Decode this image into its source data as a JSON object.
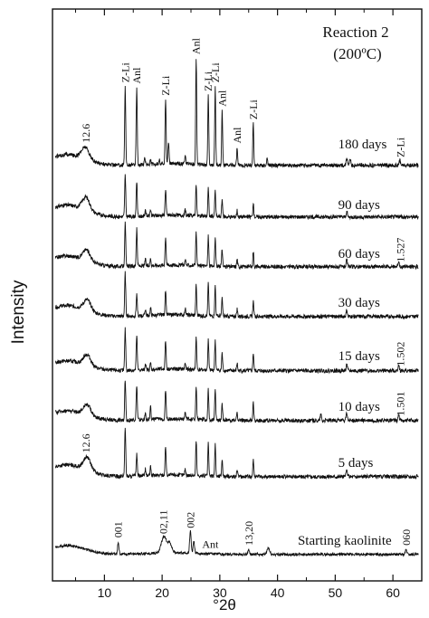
{
  "chart_data": {
    "type": "line",
    "title": "Reaction 2",
    "subtitle": "(200ºC)",
    "xlabel": "°2θ",
    "ylabel": "Intensity",
    "xlim": [
      1,
      65
    ],
    "x_ticks": [
      10,
      20,
      30,
      40,
      50,
      60
    ],
    "grid": false,
    "series": [
      {
        "name": "180 days",
        "label_x": 50.5,
        "baseline_rel": 0.22,
        "hump": 0.55,
        "noise": 0.18,
        "peaks": [
          [
            6.7,
            0.55,
            0.9
          ],
          [
            13.6,
            3.6,
            0.13
          ],
          [
            15.6,
            3.55,
            0.13
          ],
          [
            17.0,
            0.3,
            0.12
          ],
          [
            18.0,
            0.25,
            0.12
          ],
          [
            19.5,
            0.2,
            0.12
          ],
          [
            20.6,
            3.0,
            0.13
          ],
          [
            21.1,
            1.0,
            0.13
          ],
          [
            24.0,
            0.35,
            0.12
          ],
          [
            25.9,
            4.9,
            0.12
          ],
          [
            28.0,
            3.2,
            0.12
          ],
          [
            29.2,
            3.6,
            0.12
          ],
          [
            30.4,
            2.5,
            0.12
          ],
          [
            33.0,
            0.8,
            0.12
          ],
          [
            35.8,
            1.9,
            0.12
          ],
          [
            38.2,
            0.3,
            0.12
          ],
          [
            52.0,
            0.35,
            0.15
          ],
          [
            52.6,
            0.3,
            0.15
          ],
          [
            61.2,
            0.25,
            0.15
          ]
        ]
      },
      {
        "name": "90 days",
        "label_x": 50.5,
        "baseline_rel": 0.22,
        "hump": 0.6,
        "noise": 0.18,
        "peaks": [
          [
            6.8,
            0.6,
            0.9
          ],
          [
            13.6,
            1.9,
            0.13
          ],
          [
            15.6,
            1.6,
            0.13
          ],
          [
            17.1,
            0.3,
            0.12
          ],
          [
            18.0,
            0.3,
            0.12
          ],
          [
            20.6,
            1.2,
            0.13
          ],
          [
            24.0,
            0.25,
            0.12
          ],
          [
            25.9,
            1.5,
            0.12
          ],
          [
            28.0,
            1.3,
            0.12
          ],
          [
            29.2,
            1.2,
            0.12
          ],
          [
            30.4,
            0.8,
            0.12
          ],
          [
            33.0,
            0.3,
            0.12
          ],
          [
            35.8,
            0.6,
            0.12
          ],
          [
            52.0,
            0.25,
            0.15
          ]
        ]
      },
      {
        "name": "60 days",
        "label_x": 50.5,
        "baseline_rel": 0.22,
        "hump": 0.55,
        "noise": 0.18,
        "peaks": [
          [
            6.9,
            0.5,
            0.9
          ],
          [
            13.6,
            2.0,
            0.13
          ],
          [
            15.6,
            1.7,
            0.13
          ],
          [
            17.1,
            0.3,
            0.12
          ],
          [
            18.0,
            0.35,
            0.12
          ],
          [
            20.6,
            1.3,
            0.13
          ],
          [
            24.0,
            0.3,
            0.12
          ],
          [
            25.9,
            1.5,
            0.12
          ],
          [
            28.0,
            1.4,
            0.12
          ],
          [
            29.2,
            1.3,
            0.12
          ],
          [
            30.4,
            0.8,
            0.12
          ],
          [
            33.0,
            0.35,
            0.12
          ],
          [
            35.8,
            0.7,
            0.12
          ],
          [
            52.0,
            0.3,
            0.15
          ],
          [
            61.0,
            0.25,
            0.15
          ]
        ]
      },
      {
        "name": "30 days",
        "label_x": 50.5,
        "baseline_rel": 0.22,
        "hump": 0.55,
        "noise": 0.18,
        "peaks": [
          [
            7.0,
            0.5,
            0.9
          ],
          [
            13.6,
            2.0,
            0.13
          ],
          [
            15.6,
            1.0,
            0.13
          ],
          [
            17.1,
            0.3,
            0.12
          ],
          [
            18.0,
            0.35,
            0.12
          ],
          [
            20.6,
            1.1,
            0.13
          ],
          [
            24.0,
            0.3,
            0.12
          ],
          [
            25.9,
            1.4,
            0.12
          ],
          [
            28.0,
            1.5,
            0.12
          ],
          [
            29.2,
            1.4,
            0.12
          ],
          [
            30.4,
            0.8,
            0.12
          ],
          [
            33.0,
            0.35,
            0.12
          ],
          [
            35.8,
            0.7,
            0.12
          ],
          [
            52.0,
            0.3,
            0.15
          ]
        ]
      },
      {
        "name": "15 days",
        "label_x": 50.5,
        "baseline_rel": 0.22,
        "hump": 0.5,
        "noise": 0.18,
        "peaks": [
          [
            7.0,
            0.5,
            0.9
          ],
          [
            13.6,
            1.9,
            0.13
          ],
          [
            15.6,
            1.6,
            0.13
          ],
          [
            17.1,
            0.3,
            0.12
          ],
          [
            18.0,
            0.3,
            0.12
          ],
          [
            20.6,
            1.3,
            0.13
          ],
          [
            24.0,
            0.3,
            0.12
          ],
          [
            25.9,
            1.5,
            0.12
          ],
          [
            28.0,
            1.4,
            0.12
          ],
          [
            29.2,
            1.4,
            0.12
          ],
          [
            30.4,
            0.8,
            0.12
          ],
          [
            33.0,
            0.35,
            0.12
          ],
          [
            35.8,
            0.8,
            0.12
          ],
          [
            52.0,
            0.3,
            0.15
          ],
          [
            61.0,
            0.3,
            0.15
          ]
        ]
      },
      {
        "name": "10 days",
        "label_x": 50.5,
        "baseline_rel": 0.22,
        "hump": 0.5,
        "noise": 0.18,
        "peaks": [
          [
            7.0,
            0.5,
            0.9
          ],
          [
            13.6,
            1.9,
            0.13
          ],
          [
            15.6,
            1.6,
            0.13
          ],
          [
            17.1,
            0.3,
            0.12
          ],
          [
            18.0,
            0.6,
            0.12
          ],
          [
            20.6,
            1.3,
            0.13
          ],
          [
            24.0,
            0.3,
            0.12
          ],
          [
            25.9,
            1.5,
            0.12
          ],
          [
            28.0,
            1.4,
            0.12
          ],
          [
            29.2,
            1.4,
            0.12
          ],
          [
            30.4,
            0.8,
            0.12
          ],
          [
            33.0,
            0.35,
            0.12
          ],
          [
            35.8,
            0.8,
            0.12
          ],
          [
            47.5,
            0.3,
            0.15
          ],
          [
            52.0,
            0.35,
            0.15
          ],
          [
            61.0,
            0.3,
            0.15
          ]
        ]
      },
      {
        "name": "5 days",
        "label_x": 50.5,
        "baseline_rel": 0.22,
        "hump": 0.6,
        "noise": 0.18,
        "peaks": [
          [
            7.0,
            0.6,
            0.9
          ],
          [
            13.6,
            2.3,
            0.13
          ],
          [
            15.6,
            1.0,
            0.13
          ],
          [
            17.1,
            0.3,
            0.12
          ],
          [
            18.0,
            0.4,
            0.12
          ],
          [
            20.6,
            1.3,
            0.13
          ],
          [
            24.0,
            0.3,
            0.12
          ],
          [
            25.9,
            1.6,
            0.12
          ],
          [
            28.0,
            1.5,
            0.12
          ],
          [
            29.2,
            1.5,
            0.12
          ],
          [
            30.4,
            0.8,
            0.12
          ],
          [
            33.0,
            0.35,
            0.12
          ],
          [
            35.8,
            0.8,
            0.12
          ],
          [
            52.0,
            0.3,
            0.15
          ]
        ]
      },
      {
        "name": "Starting kaolinite",
        "label_x": 43.5,
        "baseline_rel": 0.22,
        "hump": 0.45,
        "noise": 0.12,
        "peaks": [
          [
            12.4,
            0.55,
            0.15
          ],
          [
            20.3,
            0.75,
            0.6
          ],
          [
            21.3,
            0.45,
            0.5
          ],
          [
            24.9,
            1.0,
            0.18
          ],
          [
            25.5,
            0.55,
            0.18
          ],
          [
            35.0,
            0.2,
            0.2
          ],
          [
            38.4,
            0.3,
            0.3
          ],
          [
            62.3,
            0.2,
            0.2
          ]
        ]
      }
    ],
    "annotations": [
      {
        "text": "12.6",
        "series": "180 days",
        "x": 6.8,
        "rotated": true
      },
      {
        "text": "Z-Li",
        "series": "180 days",
        "x": 13.6,
        "rotated": true
      },
      {
        "text": "Anl",
        "series": "180 days",
        "x": 15.6,
        "rotated": true
      },
      {
        "text": "Z-Li",
        "series": "180 days",
        "x": 20.6,
        "rotated": true
      },
      {
        "text": "Anl",
        "series": "180 days",
        "x": 25.9,
        "rotated": true
      },
      {
        "text": "Z-Li",
        "series": "180 days",
        "x": 28.0,
        "rotated": true
      },
      {
        "text": "Z-Li",
        "series": "180 days",
        "x": 29.2,
        "rotated": true
      },
      {
        "text": "Anl",
        "series": "180 days",
        "x": 30.4,
        "rotated": true
      },
      {
        "text": "Anl",
        "series": "180 days",
        "x": 33.0,
        "rotated": true
      },
      {
        "text": "Z-Li",
        "series": "180 days",
        "x": 35.8,
        "rotated": true
      },
      {
        "text": "Z-Li",
        "series": "180 days",
        "x": 61.3,
        "rotated": true
      },
      {
        "text": "1.527",
        "series": "60 days",
        "x": 61.3,
        "rotated": true
      },
      {
        "text": "1.502",
        "series": "15 days",
        "x": 61.3,
        "rotated": true
      },
      {
        "text": "1.501",
        "series": "10 days",
        "x": 61.3,
        "rotated": true
      },
      {
        "text": "12.6",
        "series": "5 days",
        "x": 6.8,
        "rotated": true
      },
      {
        "text": "001",
        "series": "Starting kaolinite",
        "x": 12.4,
        "rotated": true
      },
      {
        "text": "02,11",
        "series": "Starting kaolinite",
        "x": 20.2,
        "rotated": true
      },
      {
        "text": "002",
        "series": "Starting kaolinite",
        "x": 24.9,
        "rotated": true
      },
      {
        "text": "Ant",
        "series": "Starting kaolinite",
        "x": 26.0,
        "rotated": false
      },
      {
        "text": "13,20",
        "series": "Starting kaolinite",
        "x": 35.0,
        "rotated": true
      },
      {
        "text": "060",
        "series": "Starting kaolinite",
        "x": 62.3,
        "rotated": true
      }
    ]
  }
}
